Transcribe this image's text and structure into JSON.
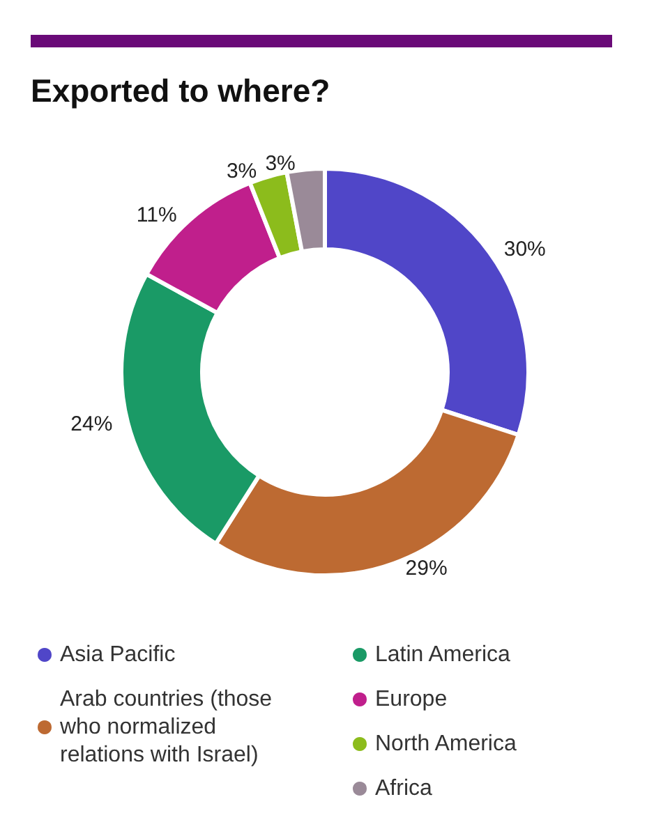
{
  "chart_data": {
    "type": "donut",
    "title": "Exported to where?",
    "categories": [
      "Asia Pacific",
      "Arab countries (those who normalized relations with Israel)",
      "Latin America",
      "Europe",
      "North America",
      "Africa"
    ],
    "values": [
      30,
      29,
      24,
      11,
      3,
      3
    ],
    "colors": [
      "#5046c8",
      "#bd6a32",
      "#1a9a66",
      "#c01f8c",
      "#8cbc1c",
      "#9a8a98"
    ],
    "value_labels": [
      "30%",
      "29%",
      "24%",
      "11%",
      "3%",
      "3%"
    ],
    "legend": "bottom"
  }
}
